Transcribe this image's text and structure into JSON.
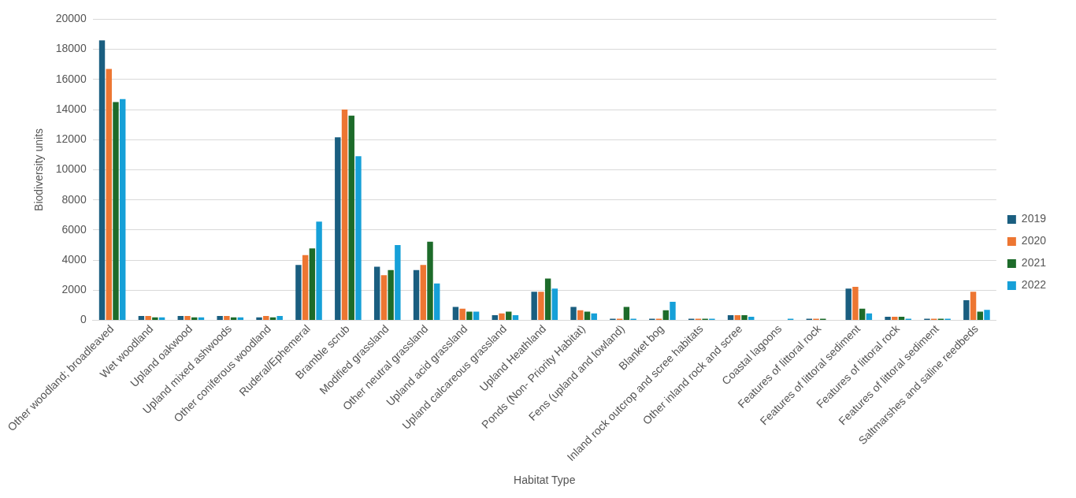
{
  "chart_data": {
    "type": "bar",
    "xlabel": "Habitat Type",
    "ylabel": "Biodiversity units",
    "categories": [
      "Other woodland; broadleaved",
      "Wet woodland",
      "Upland oakwood",
      "Upland mixed ashwoods",
      "Other coniferous woodland",
      "Ruderal/Ephemeral",
      "Bramble scrub",
      "Modified grassland",
      "Other neutral grassland",
      "Upland acid grassland",
      "Upland calcareous grassland",
      "Upland Heathland",
      "Ponds (Non- Priority Habitat)",
      "Fens (upland and lowland)",
      "Blanket bog",
      "Inland rock outcrop and scree habitats",
      "Other inland rock and scree",
      "Coastal lagoons",
      "Features of littoral rock",
      "Features of littoral sediment",
      "Features of littoral rock",
      "Features of littoral sediment",
      "Saltmarshes and saline reedbeds"
    ],
    "series": [
      {
        "name": "2019",
        "color": "#1a5e80",
        "values": [
          18600,
          290,
          290,
          290,
          200,
          3670,
          12150,
          3560,
          3330,
          890,
          340,
          1890,
          890,
          110,
          110,
          110,
          340,
          0,
          110,
          2110,
          230,
          110,
          1340
        ]
      },
      {
        "name": "2020",
        "color": "#ed7632",
        "values": [
          16700,
          290,
          290,
          290,
          290,
          4330,
          14000,
          3000,
          3670,
          770,
          460,
          1890,
          660,
          110,
          110,
          110,
          340,
          0,
          110,
          2230,
          230,
          110,
          1890
        ]
      },
      {
        "name": "2021",
        "color": "#1d6b2a",
        "values": [
          14500,
          200,
          200,
          200,
          200,
          4780,
          13600,
          3330,
          5220,
          570,
          570,
          2770,
          570,
          890,
          660,
          110,
          340,
          0,
          110,
          770,
          230,
          110,
          570
        ]
      },
      {
        "name": "2022",
        "color": "#16a0d8",
        "values": [
          14700,
          200,
          200,
          200,
          290,
          6560,
          10900,
          5000,
          2440,
          570,
          340,
          2110,
          460,
          110,
          1230,
          110,
          230,
          110,
          0,
          460,
          110,
          110,
          690
        ]
      }
    ],
    "ylim": [
      0,
      20000
    ],
    "yticks": [
      0,
      2000,
      4000,
      6000,
      8000,
      10000,
      12000,
      14000,
      16000,
      18000,
      20000
    ],
    "grid": "y",
    "legend": "right"
  }
}
